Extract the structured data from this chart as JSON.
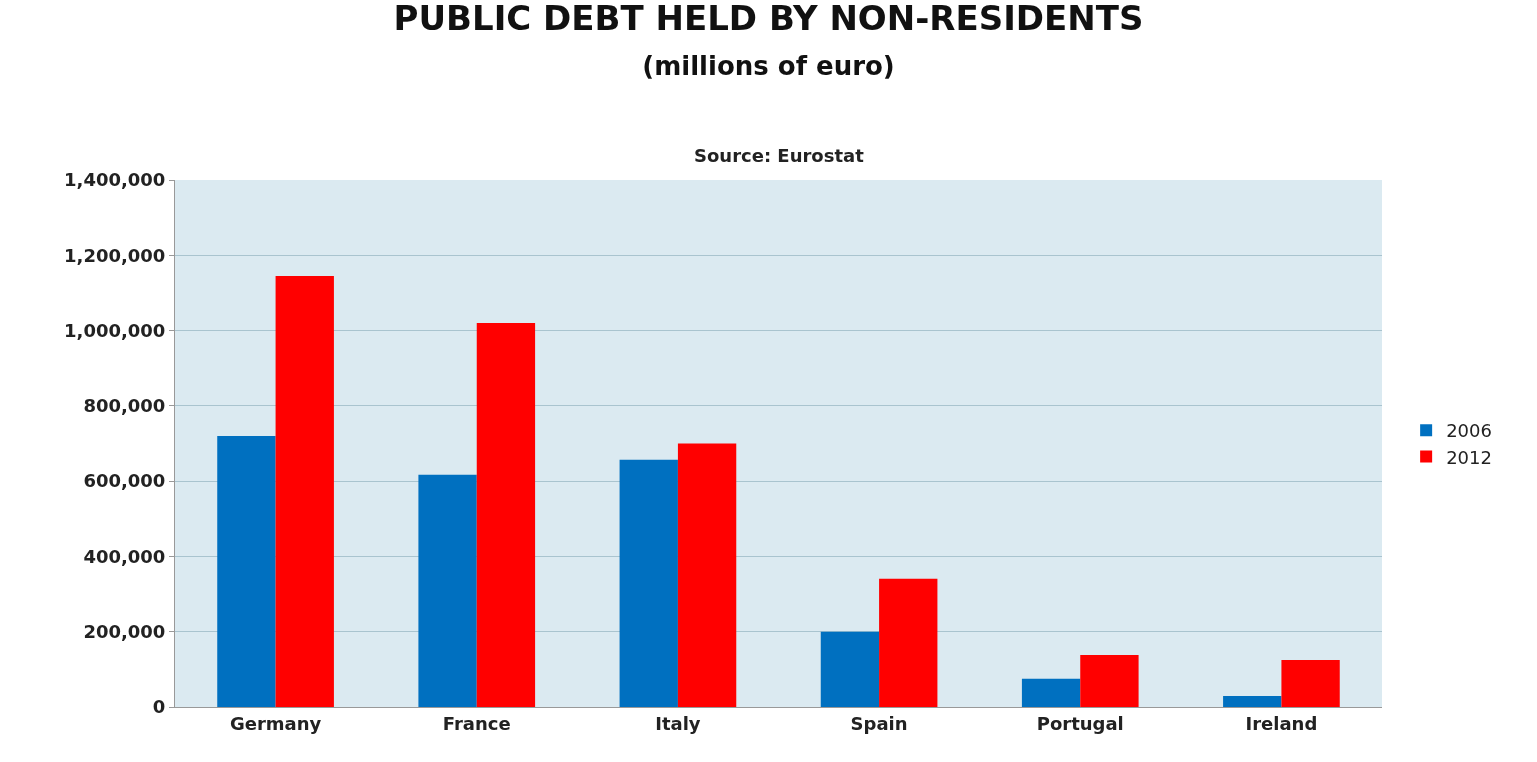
{
  "chart_data": {
    "type": "bar",
    "title": "PUBLIC DEBT HELD BY NON-RESIDENTS",
    "subtitle": "(millions of euro)",
    "annotations": [
      "Source: Eurostat"
    ],
    "categories": [
      "Germany",
      "France",
      "Italy",
      "Spain",
      "Portugal",
      "Ireland"
    ],
    "series": [
      {
        "name": "2006",
        "color": "#0070c0",
        "values": [
          720000,
          617000,
          657000,
          200000,
          75000,
          29000
        ]
      },
      {
        "name": "2012",
        "color": "#ff0000",
        "values": [
          1145000,
          1020000,
          700000,
          341000,
          138000,
          125000
        ]
      }
    ],
    "ylim": [
      0,
      1400000
    ],
    "yticks": [
      {
        "value": 0,
        "label": "0"
      },
      {
        "value": 200000,
        "label": "200,000"
      },
      {
        "value": 400000,
        "label": "400,000"
      },
      {
        "value": 600000,
        "label": "600,000"
      },
      {
        "value": 800000,
        "label": "800,000"
      },
      {
        "value": 1000000,
        "label": "1,000,000"
      },
      {
        "value": 1200000,
        "label": "1,200,000"
      },
      {
        "value": 1400000,
        "label": "1,400,000"
      }
    ],
    "grid": "y",
    "legend": "right"
  }
}
